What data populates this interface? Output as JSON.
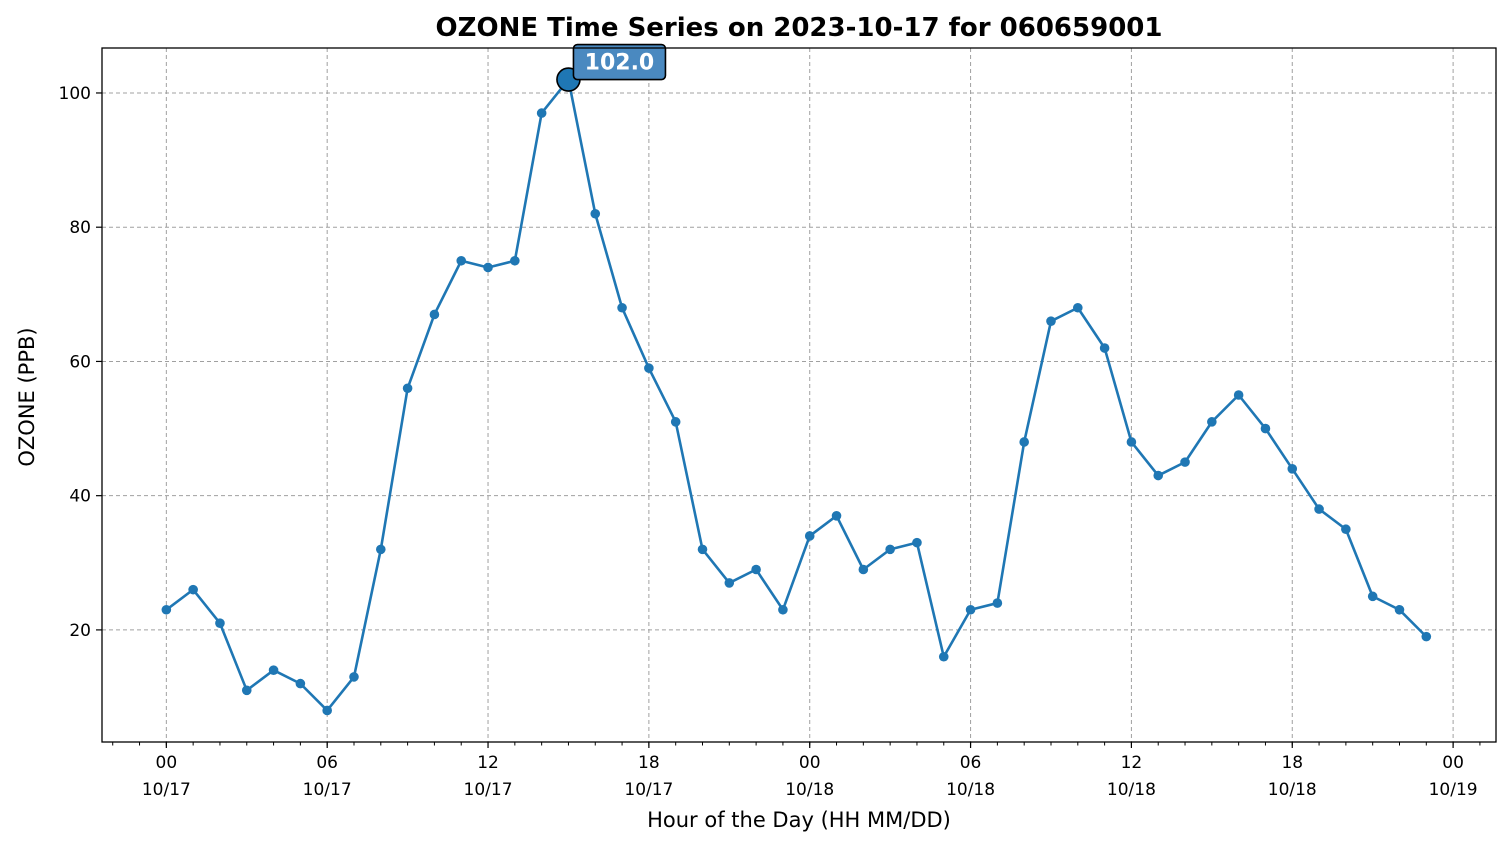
{
  "colors": {
    "series": "#1f77b4",
    "peak_badge_fill": "#4a89c0",
    "peak_badge_edge": "#000000",
    "grid": "#a0a0a0"
  },
  "chart_data": {
    "type": "line",
    "title": "OZONE Time Series on 2023-10-17 for 060659001",
    "xlabel": "Hour of the Day (HH MM/DD)",
    "ylabel": "OZONE (PPB)",
    "grid": true,
    "x_start": "2023-10-17 00:00",
    "x_end": "2023-10-19 00:00",
    "xlim": [
      "2023-10-16 21:36",
      "2023-10-19 01:36"
    ],
    "ylim": [
      3.3,
      106.7
    ],
    "yticks": [
      20,
      40,
      60,
      80,
      100
    ],
    "xticks": [
      {
        "x": "2023-10-17 00:00",
        "hour": "00",
        "date": "10/17"
      },
      {
        "x": "2023-10-17 06:00",
        "hour": "06",
        "date": "10/17"
      },
      {
        "x": "2023-10-17 12:00",
        "hour": "12",
        "date": "10/17"
      },
      {
        "x": "2023-10-17 18:00",
        "hour": "18",
        "date": "10/17"
      },
      {
        "x": "2023-10-18 00:00",
        "hour": "00",
        "date": "10/18"
      },
      {
        "x": "2023-10-18 06:00",
        "hour": "06",
        "date": "10/18"
      },
      {
        "x": "2023-10-18 12:00",
        "hour": "12",
        "date": "10/18"
      },
      {
        "x": "2023-10-18 18:00",
        "hour": "18",
        "date": "10/18"
      },
      {
        "x": "2023-10-19 00:00",
        "hour": "00",
        "date": "10/19"
      }
    ],
    "series": [
      {
        "values": [
          23,
          26,
          21,
          11,
          14,
          12,
          8,
          13,
          32,
          56,
          67,
          75,
          74,
          75,
          97,
          102,
          82,
          68,
          59,
          51,
          32,
          27,
          29,
          23,
          34,
          37,
          29,
          32,
          33,
          16,
          23,
          24,
          48,
          66,
          68,
          62,
          48,
          43,
          45,
          51,
          55,
          50,
          44,
          38,
          35,
          25,
          23,
          19
        ]
      }
    ],
    "annotations": [
      {
        "x": "2023-10-17 15:00",
        "y": 102.0,
        "text": "102.0"
      }
    ]
  }
}
